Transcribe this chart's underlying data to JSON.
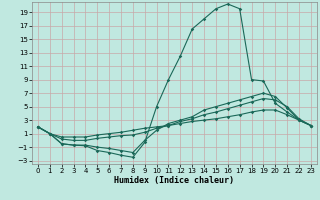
{
  "xlabel": "Humidex (Indice chaleur)",
  "bg_color": "#c0e8e0",
  "grid_color": "#c8a8a8",
  "line_color": "#1a6858",
  "xlim": [
    -0.5,
    23.5
  ],
  "ylim": [
    -3.5,
    20.5
  ],
  "xticks": [
    0,
    1,
    2,
    3,
    4,
    5,
    6,
    7,
    8,
    9,
    10,
    11,
    12,
    13,
    14,
    15,
    16,
    17,
    18,
    19,
    20,
    21,
    22,
    23
  ],
  "yticks": [
    -3,
    -1,
    1,
    3,
    5,
    7,
    9,
    11,
    13,
    15,
    17,
    19
  ],
  "curves": [
    {
      "x": [
        0,
        1,
        2,
        3,
        4,
        5,
        6,
        7,
        8,
        9,
        10,
        11,
        12,
        13,
        14,
        15,
        16,
        17,
        18,
        19,
        20,
        21,
        22,
        23
      ],
      "y": [
        2,
        1,
        -0.5,
        -0.7,
        -0.8,
        -1.5,
        -1.8,
        -2.2,
        -2.5,
        -0.3,
        5,
        9,
        12.5,
        16.5,
        18,
        19.5,
        20.2,
        19.5,
        9,
        8.8,
        5.5,
        4.2,
        3.0,
        2.2
      ]
    },
    {
      "x": [
        0,
        1,
        2,
        3,
        4,
        5,
        6,
        7,
        8,
        9,
        10,
        11,
        12,
        13,
        14,
        15,
        16,
        17,
        18,
        19,
        20,
        21,
        22,
        23
      ],
      "y": [
        2,
        1,
        -0.5,
        -0.7,
        -0.7,
        -1.0,
        -1.2,
        -1.5,
        -1.8,
        0.0,
        1.5,
        2.5,
        3.0,
        3.5,
        4.5,
        5.0,
        5.5,
        6.0,
        6.5,
        7.0,
        6.5,
        4.8,
        3.0,
        2.2
      ]
    },
    {
      "x": [
        0,
        1,
        2,
        3,
        4,
        5,
        6,
        7,
        8,
        9,
        10,
        11,
        12,
        13,
        14,
        15,
        16,
        17,
        18,
        19,
        20,
        21,
        22,
        23
      ],
      "y": [
        2,
        1,
        0.2,
        0.0,
        0.0,
        0.3,
        0.5,
        0.7,
        0.8,
        1.2,
        1.8,
        2.2,
        2.8,
        3.2,
        3.8,
        4.2,
        4.7,
        5.2,
        5.7,
        6.2,
        6.0,
        5.0,
        3.2,
        2.2
      ]
    },
    {
      "x": [
        0,
        1,
        2,
        3,
        4,
        5,
        6,
        7,
        8,
        9,
        10,
        11,
        12,
        13,
        14,
        15,
        16,
        17,
        18,
        19,
        20,
        21,
        22,
        23
      ],
      "y": [
        2,
        1,
        0.5,
        0.5,
        0.5,
        0.8,
        1.0,
        1.2,
        1.5,
        1.8,
        2.0,
        2.2,
        2.5,
        2.8,
        3.0,
        3.2,
        3.5,
        3.8,
        4.2,
        4.5,
        4.5,
        3.8,
        3.0,
        2.2
      ]
    }
  ]
}
